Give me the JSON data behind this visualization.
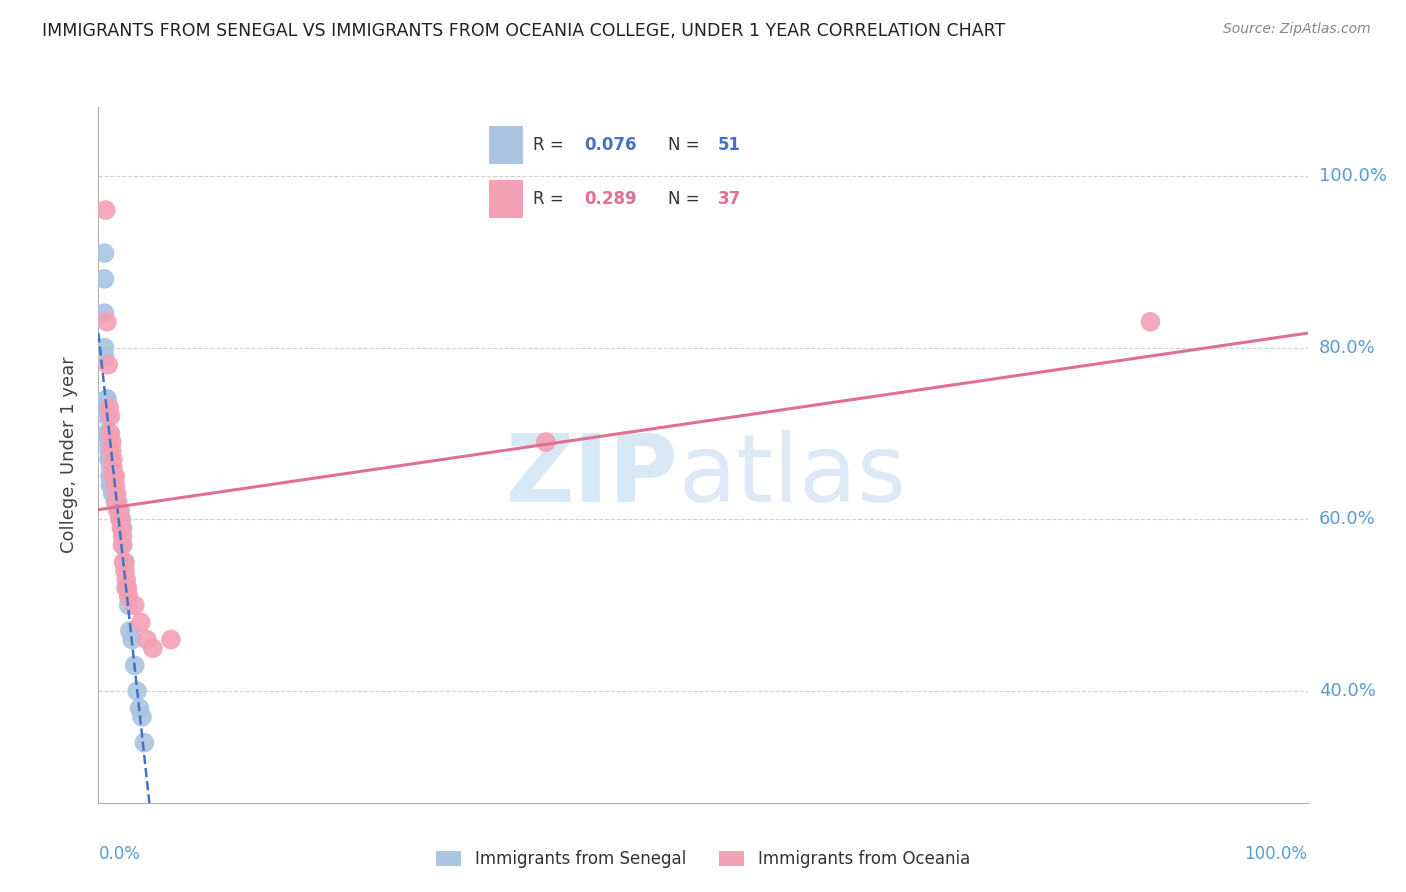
{
  "title": "IMMIGRANTS FROM SENEGAL VS IMMIGRANTS FROM OCEANIA COLLEGE, UNDER 1 YEAR CORRELATION CHART",
  "source": "Source: ZipAtlas.com",
  "ylabel": "College, Under 1 year",
  "ytick_labels": [
    "100.0%",
    "80.0%",
    "60.0%",
    "40.0%"
  ],
  "ytick_values": [
    1.0,
    0.8,
    0.6,
    0.4
  ],
  "xlim": [
    0.0,
    1.0
  ],
  "ylim": [
    0.27,
    1.08
  ],
  "axis_color": "#5b9bd5",
  "senegal_color": "#aac4e2",
  "oceania_color": "#f4a0b5",
  "senegal_line_color": "#4472c4",
  "oceania_line_color": "#e07090",
  "senegal_x": [
    0.005,
    0.005,
    0.005,
    0.005,
    0.005,
    0.007,
    0.007,
    0.007,
    0.007,
    0.007,
    0.008,
    0.008,
    0.009,
    0.009,
    0.009,
    0.009,
    0.01,
    0.01,
    0.01,
    0.01,
    0.01,
    0.01,
    0.01,
    0.01,
    0.01,
    0.011,
    0.011,
    0.012,
    0.012,
    0.013,
    0.013,
    0.013,
    0.014,
    0.015,
    0.015,
    0.016,
    0.017,
    0.018,
    0.019,
    0.02,
    0.02,
    0.022,
    0.023,
    0.025,
    0.026,
    0.028,
    0.03,
    0.032,
    0.034,
    0.036,
    0.038
  ],
  "senegal_y": [
    0.91,
    0.88,
    0.84,
    0.8,
    0.79,
    0.74,
    0.74,
    0.73,
    0.72,
    0.7,
    0.7,
    0.69,
    0.68,
    0.68,
    0.67,
    0.67,
    0.67,
    0.66,
    0.65,
    0.65,
    0.65,
    0.65,
    0.65,
    0.64,
    0.64,
    0.64,
    0.64,
    0.63,
    0.63,
    0.63,
    0.63,
    0.63,
    0.62,
    0.62,
    0.62,
    0.62,
    0.61,
    0.61,
    0.6,
    0.59,
    0.57,
    0.55,
    0.52,
    0.5,
    0.47,
    0.46,
    0.43,
    0.4,
    0.38,
    0.37,
    0.34
  ],
  "oceania_x": [
    0.006,
    0.007,
    0.008,
    0.009,
    0.01,
    0.01,
    0.011,
    0.011,
    0.012,
    0.012,
    0.013,
    0.013,
    0.014,
    0.014,
    0.015,
    0.015,
    0.016,
    0.017,
    0.018,
    0.018,
    0.019,
    0.02,
    0.02,
    0.021,
    0.021,
    0.022,
    0.023,
    0.023,
    0.024,
    0.025,
    0.03,
    0.035,
    0.04,
    0.045,
    0.06,
    0.37,
    0.87
  ],
  "oceania_y": [
    0.96,
    0.83,
    0.78,
    0.73,
    0.72,
    0.7,
    0.69,
    0.68,
    0.67,
    0.66,
    0.65,
    0.65,
    0.65,
    0.64,
    0.63,
    0.62,
    0.61,
    0.61,
    0.6,
    0.6,
    0.59,
    0.58,
    0.57,
    0.55,
    0.55,
    0.54,
    0.53,
    0.52,
    0.52,
    0.51,
    0.5,
    0.48,
    0.46,
    0.45,
    0.46,
    0.69,
    0.83
  ]
}
